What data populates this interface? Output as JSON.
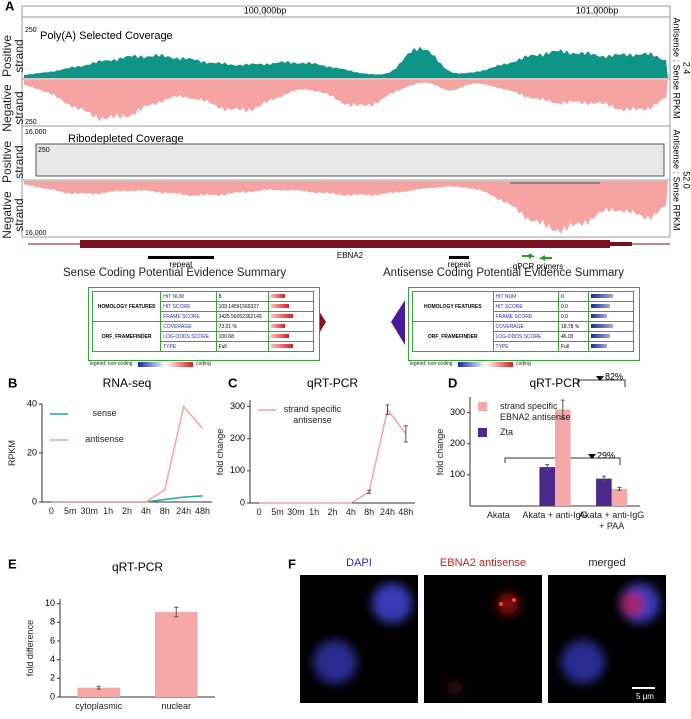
{
  "panel_labels": [
    "A",
    "B",
    "C",
    "D",
    "E",
    "F"
  ],
  "panel_a": {
    "ruler": [
      "100,000bp",
      "101,000bp"
    ],
    "strand_labels": [
      "Positive strand",
      "Negative strand"
    ],
    "track1": {
      "title": "Poly(A) Selected Coverage",
      "top_scale": "250",
      "bottom_scale": "250",
      "ratio_label": "Antisense : Sense RPKM",
      "ratio": "2.4"
    },
    "track2": {
      "title": "Ribodepleted Coverage",
      "top_scale": "16,000",
      "inner_scale": "250",
      "bottom_scale": "16,000",
      "ratio_label": "Antisense : Sense RPKM",
      "ratio": "52.0"
    },
    "gene": "EBNA2",
    "repeat": "repeat",
    "primers": "qPCR primers",
    "sense_table": {
      "title": "Sense Coding Potential Evidence Summary",
      "groups": [
        {
          "name": "HOMOLOGY FEATURES",
          "rows": [
            [
              "HIT NUM",
              "8"
            ],
            [
              "HIT SCORE",
              "109.14591569327"
            ],
            [
              "FRAME SCORE",
              "3425.56052362149"
            ]
          ]
        },
        {
          "name": "ORF_FRAMEFINDER",
          "rows": [
            [
              "COVERAGE",
              "73.01 %"
            ],
            [
              "LOG-ODDS SCORE",
              "100.68"
            ],
            [
              "TYPE",
              "Full"
            ]
          ]
        }
      ],
      "legend": [
        "legend: non-coding",
        "coding"
      ]
    },
    "antisense_table": {
      "title": "Antisense Coding Potential Evidence Summary",
      "groups": [
        {
          "name": "HOMOLOGY FEATURES",
          "rows": [
            [
              "HIT NUM",
              "0"
            ],
            [
              "HIT SCORE",
              "0.0"
            ],
            [
              "FRAME SCORE",
              "0.0"
            ]
          ]
        },
        {
          "name": "ORF_FRAMEFINDER",
          "rows": [
            [
              "COVERAGE",
              "18.78 %"
            ],
            [
              "LOG-ODDS SCORE",
              "46.03"
            ],
            [
              "TYPE",
              "Full"
            ]
          ]
        }
      ],
      "legend": [
        "legend: non-coding",
        "coding"
      ]
    }
  },
  "chart_data": [
    {
      "type": "line",
      "title": "RNA-seq",
      "ylabel": "RPKM",
      "categories": [
        "0",
        "5m",
        "30m",
        "1h",
        "2h",
        "4h",
        "8h",
        "24h",
        "48h"
      ],
      "series": [
        {
          "name": "sense",
          "color": "#1fa89a",
          "values": [
            0,
            0,
            0,
            0,
            0,
            0,
            1,
            2,
            2.5
          ]
        },
        {
          "name": "antisense",
          "color": "#f4a3a3",
          "values": [
            0,
            0,
            0,
            0,
            0,
            0,
            5,
            39,
            30
          ]
        }
      ],
      "ylim": [
        0,
        40
      ],
      "yticks": [
        0,
        20,
        40
      ],
      "legend": "upper left"
    },
    {
      "type": "line",
      "title": "qRT-PCR",
      "ylabel": "fold change",
      "categories": [
        "0",
        "5m",
        "30m",
        "1h",
        "2h",
        "4h",
        "8h",
        "24h",
        "48h"
      ],
      "series": [
        {
          "name": "strand specific antisense",
          "color": "#f4a3a3",
          "values": [
            0,
            0,
            0,
            0,
            0,
            0,
            35,
            290,
            215
          ],
          "errors": [
            null,
            null,
            null,
            null,
            null,
            null,
            5,
            15,
            25
          ]
        }
      ],
      "ylim": [
        0,
        320
      ],
      "yticks": [
        0,
        100,
        200,
        300
      ],
      "legend": "upper left"
    },
    {
      "type": "bar",
      "title": "qRT-PCR",
      "ylabel": "fold change",
      "categories": [
        "Akata",
        "Akata + anti-IgG",
        "Akata + anti-IgG + PAA"
      ],
      "series": [
        {
          "name": "strand specific EBNA2 antisense",
          "color": "#f6a8a8",
          "values": [
            0,
            310,
            55
          ],
          "errors": [
            null,
            30,
            5
          ]
        },
        {
          "name": "Zta",
          "color": "#4b2a8c",
          "values": [
            0,
            125,
            88
          ],
          "errors": [
            null,
            8,
            8
          ]
        }
      ],
      "ylim": [
        0,
        350
      ],
      "yticks": [
        100,
        200,
        300
      ],
      "legend": "upper left",
      "annotations": [
        "82%",
        "29%"
      ]
    },
    {
      "type": "bar",
      "title": "qRT-PCR",
      "ylabel": "fold difference",
      "categories": [
        "cytoplasmic",
        "nuclear"
      ],
      "series": [
        {
          "name": null,
          "color": "#f6a8a8",
          "values": [
            1.0,
            9.1
          ],
          "errors": [
            0.15,
            0.5
          ]
        }
      ],
      "ylim": [
        0,
        10.5
      ],
      "yticks": [
        0,
        2,
        4,
        6,
        8,
        10
      ]
    }
  ],
  "panel_f": {
    "labels": [
      "DAPI",
      "EBNA2 antisense",
      "merged"
    ],
    "scale": "5 μm"
  }
}
